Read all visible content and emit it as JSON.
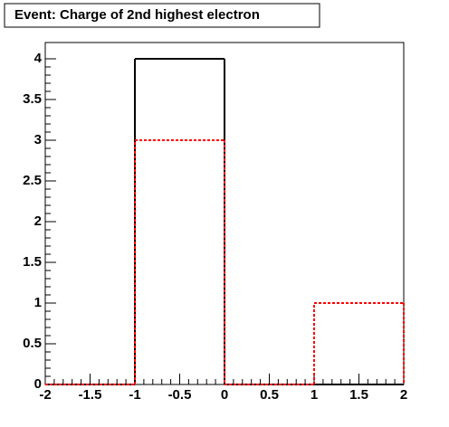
{
  "chart_data": {
    "type": "histogram",
    "title": "Event: Charge of 2nd highest electron",
    "bins": [
      -2,
      -1,
      0,
      1,
      2
    ],
    "series": [
      {
        "color": "#000000",
        "line_style": "solid",
        "values": [
          0,
          4,
          0,
          0
        ]
      },
      {
        "color": "#ff0000",
        "line_style": "dashed",
        "values": [
          0,
          3,
          0,
          1
        ]
      }
    ],
    "xlim": [
      -2,
      2
    ],
    "xticks": [
      -2,
      -1.5,
      -1,
      -0.5,
      0,
      0.5,
      1,
      1.5,
      2
    ],
    "ylim": [
      0,
      4.2
    ],
    "yticks": [
      0,
      0.5,
      1,
      1.5,
      2,
      2.5,
      3,
      3.5,
      4
    ]
  }
}
